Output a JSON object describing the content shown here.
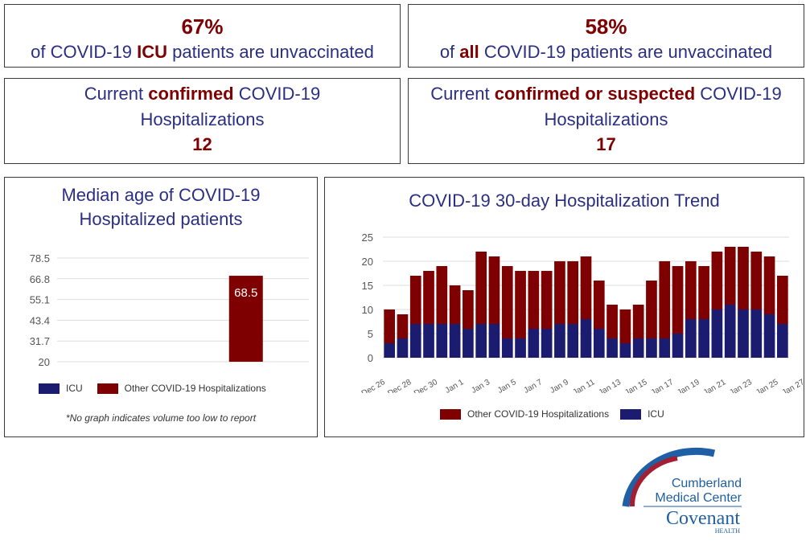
{
  "cards": {
    "icu_unvaccinated": {
      "value": "67%",
      "text_before": "of COVID-19 ",
      "text_highlight": "ICU",
      "text_after": " patients are unvaccinated"
    },
    "all_unvaccinated": {
      "value": "58%",
      "text_before": "of ",
      "text_highlight": "all",
      "text_after": " COVID-19 patients are unvaccinated"
    },
    "confirmed": {
      "text_before": "Current ",
      "text_highlight": "confirmed",
      "text_after": " COVID-19",
      "line2": "Hospitalizations",
      "count": "12"
    },
    "confirmed_or_suspected": {
      "text_before": "Current ",
      "text_highlight": "confirmed or suspected",
      "text_after": " COVID-19",
      "line2": "Hospitalizations",
      "count": "17"
    }
  },
  "colors": {
    "icu": "#1b1b6f",
    "other": "#7f0000",
    "title": "#2b2f84",
    "grid": "#dddddd"
  },
  "logo": {
    "line1": "Cumberland",
    "line2": "Medical Center",
    "brand": "Covenant",
    "brand_sub": "HEALTH"
  },
  "chart_data": [
    {
      "type": "bar",
      "title_line1": "Median age of COVID-19",
      "title_line2": "Hospitalized patients",
      "categories": [
        "ICU",
        "Other COVID-19 Hospitalizations"
      ],
      "series": [
        {
          "name": "ICU",
          "values": [
            null
          ]
        },
        {
          "name": "Other COVID-19 Hospitalizations",
          "values": [
            68.5
          ]
        }
      ],
      "data_label": "68.5",
      "yticks": [
        "78.5",
        "66.8",
        "55.1",
        "43.4",
        "31.7",
        "20"
      ],
      "ylim": [
        20,
        78.5
      ],
      "grid": true,
      "legend": [
        "ICU",
        "Other COVID-19 Hospitalizations"
      ],
      "legend_position": "bottom",
      "note": "*No graph indicates volume too low to report"
    },
    {
      "type": "bar",
      "stacked": true,
      "title": "COVID-19 30-day Hospitalization Trend",
      "x": [
        "Dec 26",
        "Dec 27",
        "Dec 28",
        "Dec 29",
        "Dec 30",
        "Dec 31",
        "Jan 1",
        "Jan 2",
        "Jan 3",
        "Jan 4",
        "Jan 5",
        "Jan 6",
        "Jan 7",
        "Jan 8",
        "Jan 9",
        "Jan 10",
        "Jan 11",
        "Jan 12",
        "Jan 13",
        "Jan 14",
        "Jan 15",
        "Jan 16",
        "Jan 17",
        "Jan 18",
        "Jan 19",
        "Jan 20",
        "Jan 21",
        "Jan 22",
        "Jan 23",
        "Jan 24",
        "Jan 25"
      ],
      "xtick_labels": [
        "Dec 26",
        "Dec 28",
        "Dec 30",
        "Jan 1",
        "Jan 3",
        "Jan 5",
        "Jan 7",
        "Jan 9",
        "Jan 11",
        "Jan 13",
        "Jan 15",
        "Jan 17",
        "Jan 19",
        "Jan 21",
        "Jan 23",
        "Jan 25",
        "Jan 27"
      ],
      "series": [
        {
          "name": "ICU",
          "values": [
            3,
            4,
            7,
            7,
            7,
            7,
            6,
            7,
            7,
            4,
            4,
            6,
            6,
            7,
            7,
            8,
            6,
            4,
            3,
            4,
            4,
            4,
            5,
            8,
            8,
            10,
            11,
            10,
            10,
            9,
            7
          ]
        },
        {
          "name": "Other COVID-19 Hospitalizations",
          "values": [
            7,
            5,
            10,
            11,
            12,
            8,
            8,
            15,
            14,
            15,
            14,
            12,
            12,
            13,
            13,
            13,
            10,
            7,
            7,
            7,
            12,
            16,
            14,
            12,
            11,
            12,
            12,
            13,
            12,
            12,
            10
          ]
        }
      ],
      "totals": [
        10,
        9,
        17,
        18,
        19,
        15,
        14,
        22,
        21,
        19,
        18,
        18,
        18,
        20,
        20,
        21,
        16,
        11,
        10,
        11,
        16,
        20,
        19,
        20,
        19,
        22,
        23,
        23,
        22,
        21,
        17
      ],
      "yticks": [
        "25",
        "20",
        "15",
        "10",
        "5",
        "0"
      ],
      "ylim": [
        0,
        25
      ],
      "grid": true,
      "legend": [
        "Other COVID-19 Hospitalizations",
        "ICU"
      ],
      "legend_position": "bottom"
    }
  ]
}
